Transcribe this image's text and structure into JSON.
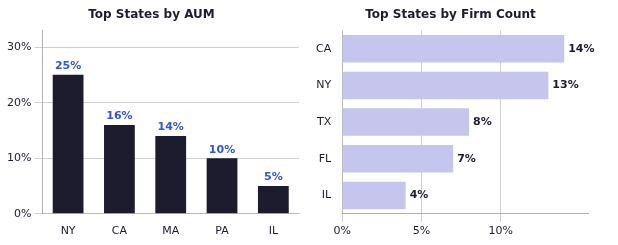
{
  "chart_data": [
    {
      "type": "bar",
      "title": "Top States by AUM",
      "categories": [
        "NY",
        "CA",
        "MA",
        "PA",
        "IL"
      ],
      "values": [
        25,
        16,
        14,
        10,
        5
      ],
      "value_labels": [
        "25%",
        "16%",
        "14%",
        "10%",
        "5%"
      ],
      "color": "#1c1c2e",
      "ylim": [
        0,
        33
      ],
      "yticks": [
        {
          "value": 0,
          "label": "0%"
        },
        {
          "value": 10,
          "label": "10%"
        },
        {
          "value": 20,
          "label": "20%"
        },
        {
          "value": 30,
          "label": "30%"
        }
      ],
      "data_labels": true,
      "grid": true
    },
    {
      "type": "bar",
      "orientation": "horizontal",
      "title": "Top States by Firm Count",
      "categories": [
        "CA",
        "NY",
        "TX",
        "FL",
        "IL"
      ],
      "values": [
        14,
        13,
        8,
        7,
        4
      ],
      "value_labels": [
        "14%",
        "13%",
        "8%",
        "7%",
        "4%"
      ],
      "color": "#c5c5ee",
      "xlim": [
        0,
        15.5
      ],
      "xticks": [
        {
          "value": 0,
          "label": "0%"
        },
        {
          "value": 5,
          "label": "5%"
        },
        {
          "value": 10,
          "label": "10%"
        }
      ],
      "data_labels": true,
      "grid": true
    }
  ]
}
